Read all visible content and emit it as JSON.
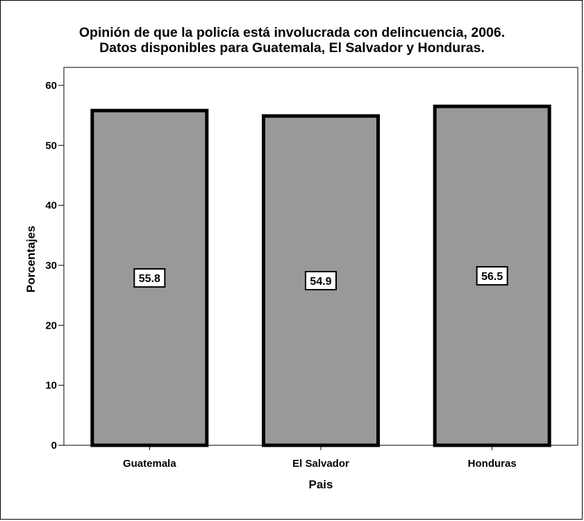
{
  "chart_data": {
    "type": "bar",
    "title_lines": [
      "Opinión de que la policía está involucrada con delincuencia, 2006.",
      "Datos disponibles para Guatemala, El Salvador y Honduras."
    ],
    "xlabel": "Pais",
    "ylabel": "Porcentajes",
    "categories": [
      "Guatemala",
      "El Salvador",
      "Honduras"
    ],
    "values": [
      55.8,
      54.9,
      56.5
    ],
    "data_labels": [
      "55.8",
      "54.9",
      "56.5"
    ],
    "yticks": [
      0,
      10,
      20,
      30,
      40,
      50,
      60
    ],
    "ylim": [
      0,
      63
    ],
    "grid": false,
    "legend": "none",
    "colors": {
      "bar_fill": "#999999",
      "bar_stroke": "#000000",
      "label_box": "#ffffff"
    }
  }
}
